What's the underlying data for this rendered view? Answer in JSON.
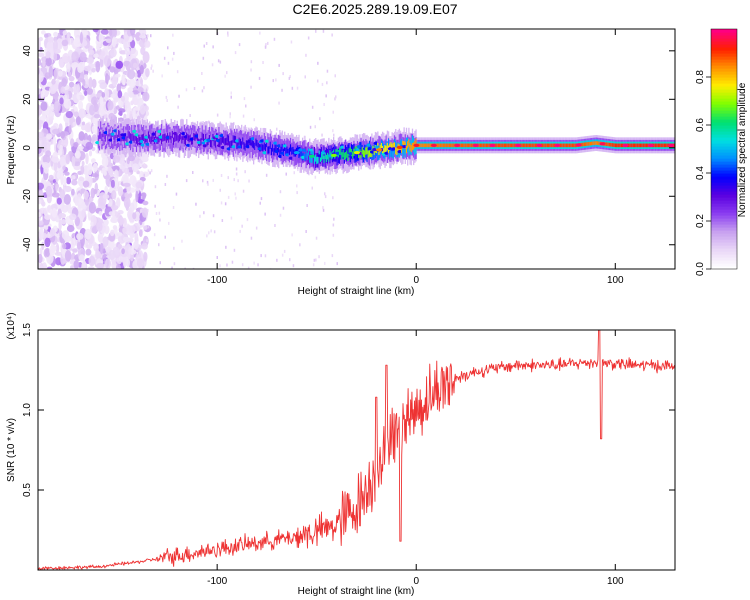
{
  "figure_title": "C2E6.2025.289.19.09.E07",
  "chart_data": [
    {
      "type": "heatmap",
      "title": "C2E6.2025.289.19.09.E07",
      "xlabel": "Height of straight line (km)",
      "ylabel": "Frequency (Hz)",
      "xlim": [
        -190,
        130
      ],
      "ylim": [
        -50,
        49
      ],
      "x_ticks": [
        -100,
        0,
        100
      ],
      "x_tick_labels": [
        "-100",
        "0",
        "100"
      ],
      "y_ticks": [
        -40,
        -20,
        0,
        20,
        40
      ],
      "y_tick_labels": [
        "-40",
        "-20",
        "0",
        "20",
        "40"
      ],
      "colorbar": {
        "label": "Normalized spectral amplitude",
        "range": [
          0,
          1
        ],
        "ticks": [
          0.0,
          0.2,
          0.4,
          0.6,
          0.8
        ],
        "tick_labels": [
          "0.0",
          "0.2",
          "0.4",
          "0.6",
          "0.8"
        ],
        "colormap": [
          "#ffffff",
          "#e9d6f7",
          "#c7a0f0",
          "#8a3cf0",
          "#5a00e0",
          "#0000ff",
          "#0090ff",
          "#00e0e0",
          "#00e070",
          "#80ff00",
          "#ffee00",
          "#ff9000",
          "#ff2000",
          "#ff0080"
        ]
      },
      "ridge": {
        "x": [
          -155,
          -140,
          -120,
          -100,
          -80,
          -60,
          -50,
          -40,
          -30,
          -20,
          -10,
          0,
          20,
          40,
          60,
          80,
          90,
          100,
          130
        ],
        "freq": [
          5,
          4,
          4,
          3,
          1,
          -2,
          -4,
          -3,
          -2,
          -1,
          0,
          1,
          1,
          1,
          1,
          1,
          2,
          1,
          1
        ],
        "peak_amplitude": [
          0.25,
          0.3,
          0.3,
          0.32,
          0.35,
          0.38,
          0.55,
          0.6,
          0.65,
          0.75,
          0.8,
          0.85,
          0.88,
          0.9,
          0.9,
          0.9,
          0.85,
          0.92,
          0.92
        ]
      }
    },
    {
      "type": "line",
      "xlabel": "Height of straight line (km)",
      "ylabel": "SNR (10 * v/v)",
      "y_scale_label": "(x10⁴)",
      "xlim": [
        -190,
        130
      ],
      "ylim": [
        0,
        1.5
      ],
      "x_ticks": [
        -100,
        0,
        100
      ],
      "x_tick_labels": [
        "-100",
        "0",
        "100"
      ],
      "y_ticks": [
        0.5,
        1.0,
        1.5
      ],
      "y_tick_labels": [
        "0.5",
        "1.0",
        "1.5"
      ],
      "series": [
        {
          "name": "SNR",
          "color": "#ee3333",
          "x": [
            -190,
            -160,
            -140,
            -130,
            -120,
            -110,
            -100,
            -90,
            -80,
            -70,
            -60,
            -50,
            -40,
            -35,
            -30,
            -25,
            -20,
            -15,
            -10,
            -5,
            0,
            5,
            10,
            15,
            20,
            25,
            30,
            40,
            50,
            60,
            70,
            80,
            90,
            100,
            110,
            120,
            130
          ],
          "values": [
            0.01,
            0.02,
            0.05,
            0.07,
            0.09,
            0.11,
            0.13,
            0.15,
            0.17,
            0.19,
            0.21,
            0.24,
            0.28,
            0.33,
            0.4,
            0.5,
            0.62,
            0.75,
            0.88,
            0.95,
            1.0,
            1.06,
            1.12,
            1.17,
            1.2,
            1.22,
            1.24,
            1.26,
            1.28,
            1.28,
            1.28,
            1.29,
            1.3,
            1.29,
            1.28,
            1.28,
            1.27
          ]
        }
      ],
      "annotations": [
        {
          "x": -8,
          "y": 1.46
        },
        {
          "x": -15,
          "y": 1.28
        },
        {
          "x": -20,
          "y": 1.08
        },
        {
          "x": -8,
          "y": 0.18
        },
        {
          "x": 92,
          "y": 1.5
        },
        {
          "x": 93,
          "y": 0.82
        }
      ]
    }
  ]
}
